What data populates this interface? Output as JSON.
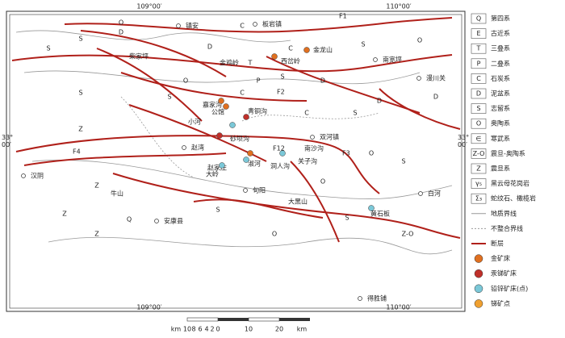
{
  "map": {
    "coords": {
      "top_left": "109°00′",
      "top_right": "110°00′",
      "bottom_left": "109°00′",
      "bottom_right": "110°00′",
      "left": "33°\n00′",
      "right": "33°\n00′"
    },
    "places": [
      "镇安",
      "板岩镇",
      "柴家坪",
      "金鸡岭",
      "西岔岭",
      "金龙山",
      "南宽坪",
      "漫川关",
      "嘉家沟",
      "公馆",
      "青铜沟",
      "小河",
      "砂坝沟",
      "双河镇",
      "赵湾",
      "南沙沟",
      "关子沟",
      "汉阴",
      "牛山",
      "旬阳",
      "安康县",
      "大黑山",
      "白河",
      "黄石板",
      "得胜铺",
      "赵家庄",
      "大岭",
      "淑河",
      "洞人沟"
    ],
    "faults": [
      "F1",
      "F2",
      "F3",
      "F4",
      "F12"
    ],
    "units": [
      "S",
      "D",
      "C",
      "O",
      "D",
      "S",
      "T",
      "C",
      "S",
      "O",
      "S",
      "D",
      "C",
      "P",
      "D",
      "S",
      "O",
      "S",
      "Z",
      "S",
      "O",
      "Z",
      "Q",
      "Z",
      "S",
      "O",
      "Z-O",
      "Z",
      "S",
      "D",
      "C",
      "S",
      "O"
    ]
  },
  "legend": [
    {
      "symbol": "Q",
      "label": "第四系"
    },
    {
      "symbol": "E",
      "label": "古近系"
    },
    {
      "symbol": "T",
      "label": "三叠系"
    },
    {
      "symbol": "P",
      "label": "二叠系"
    },
    {
      "symbol": "C",
      "label": "石炭系"
    },
    {
      "symbol": "D",
      "label": "泥盆系"
    },
    {
      "symbol": "S",
      "label": "志留系"
    },
    {
      "symbol": "O",
      "label": "奥陶系"
    },
    {
      "symbol": "∈",
      "label": "寒武系"
    },
    {
      "symbol": "Z-O",
      "label": "震旦-奥陶系"
    },
    {
      "symbol": "Z",
      "label": "震旦系"
    },
    {
      "symbol": "γ₅",
      "label": "黑云母花岗岩"
    },
    {
      "symbol": "Σ₃",
      "label": "蛇纹石、橄榄岩"
    },
    {
      "symbol": "",
      "label": "地质界线"
    },
    {
      "symbol": "",
      "label": "不整合界线"
    },
    {
      "symbol": "",
      "label": "断层"
    },
    {
      "symbol": "",
      "label": "金矿床"
    },
    {
      "symbol": "",
      "label": "汞锑矿床"
    },
    {
      "symbol": "",
      "label": "铅锌矿床(点)"
    },
    {
      "symbol": "",
      "label": "锑矿点"
    }
  ],
  "scale": {
    "labels": [
      "km",
      "10",
      "8",
      "6",
      "4",
      "2",
      "0",
      "10",
      "20",
      "km"
    ]
  }
}
